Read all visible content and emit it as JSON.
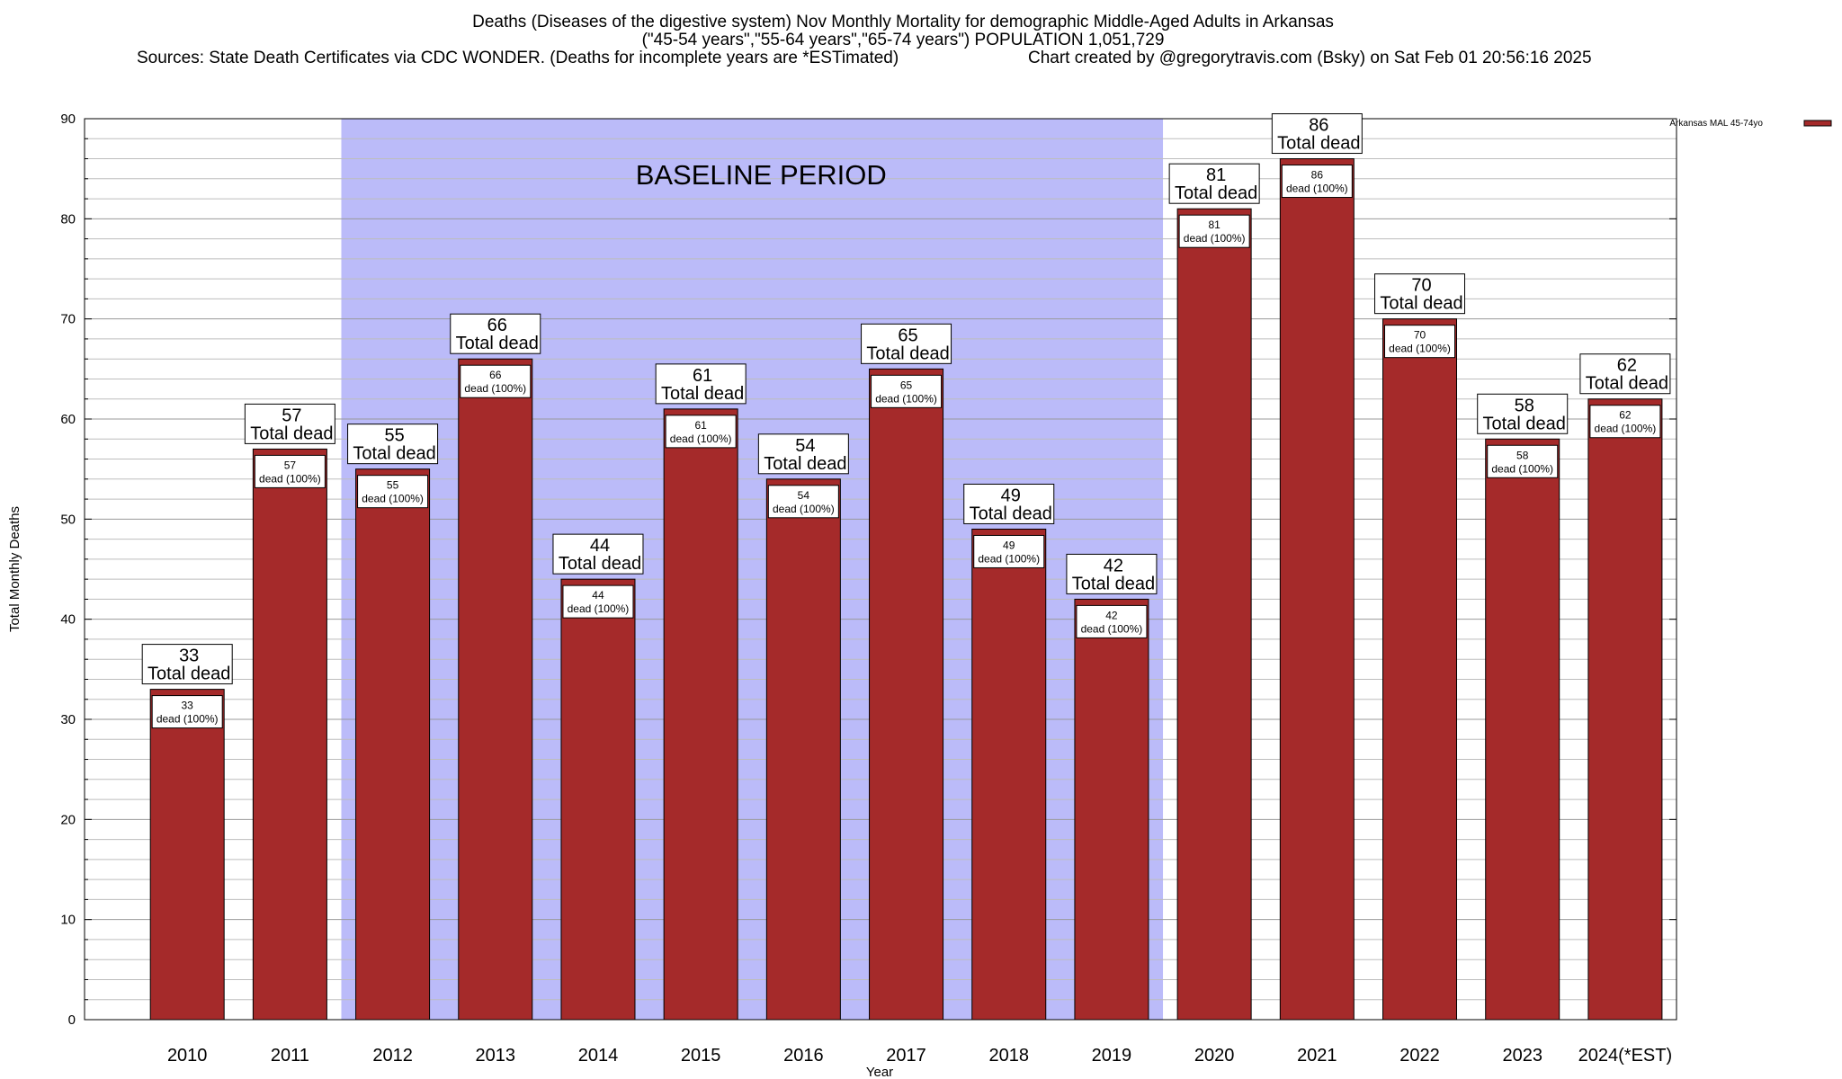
{
  "header": {
    "title_line1": "Deaths (Diseases of the digestive system) Nov Monthly Mortality for demographic Middle-Aged Adults in Arkansas",
    "title_line2": "(\"45-54 years\",\"55-64 years\",\"65-74 years\") POPULATION 1,051,729",
    "sources": "Sources: State Death Certificates via CDC WONDER. (Deaths for incomplete years are *ESTimated)",
    "credit": "Chart created by @gregorytravis.com (Bsky) on Sat Feb 01 20:56:16 2025"
  },
  "chart_data": {
    "type": "bar",
    "xlabel": "Year",
    "ylabel": "Total Monthly Deaths",
    "ylim": [
      0,
      90
    ],
    "yticks": [
      0,
      10,
      20,
      30,
      40,
      50,
      60,
      70,
      80,
      90
    ],
    "categories": [
      "2010",
      "2011",
      "2012",
      "2013",
      "2014",
      "2015",
      "2016",
      "2017",
      "2018",
      "2019",
      "2020",
      "2021",
      "2022",
      "2023",
      "2024(*EST)"
    ],
    "series": [
      {
        "name": "Arkansas MAL 45-74yo",
        "color": "#a52a2a",
        "values": [
          33,
          57,
          55,
          66,
          44,
          61,
          54,
          65,
          49,
          42,
          81,
          86,
          70,
          58,
          62
        ]
      }
    ],
    "top_label_suffix": "Total dead",
    "inner_label_suffix": "dead (100%)",
    "annotation": {
      "text": "BASELINE PERIOD",
      "from_category": "2012",
      "to_category": "2019",
      "color": "#bbbbf9"
    },
    "grid": "horizontal",
    "legend_position": "top-right"
  }
}
